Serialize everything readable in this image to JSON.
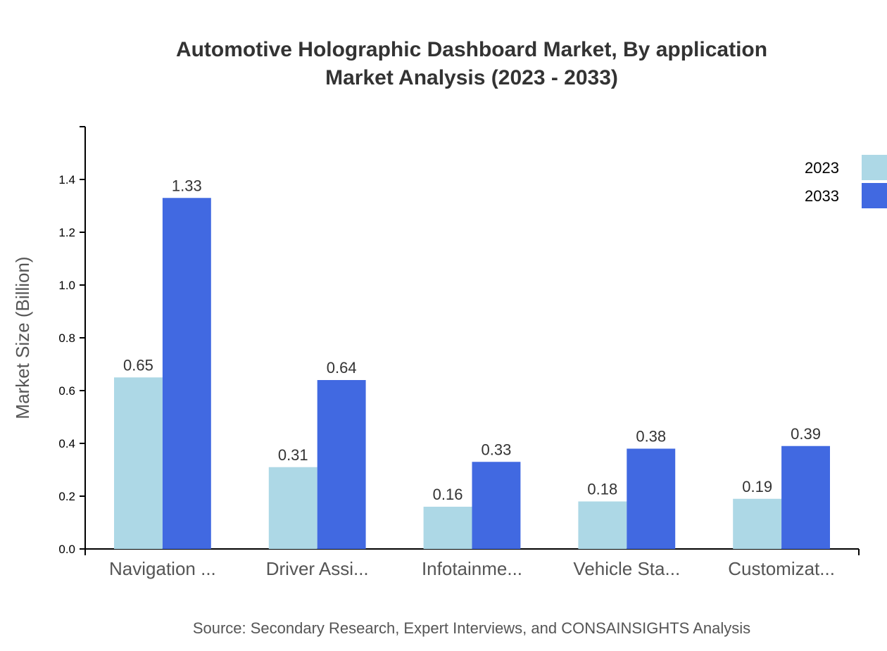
{
  "chart_data": {
    "type": "bar",
    "title": "Automotive Holographic Dashboard Market, By application",
    "subtitle": "Market Analysis (2023 - 2033)",
    "xlabel": "",
    "ylabel": "Market Size (Billion)",
    "ylim": [
      0,
      1.6
    ],
    "yticks": [
      "0.0",
      "0.2",
      "0.4",
      "0.6",
      "0.8",
      "1.0",
      "1.2",
      "1.4"
    ],
    "categories": [
      "Navigation ...",
      "Driver Assi...",
      "Infotainme...",
      "Vehicle Sta...",
      "Customizat..."
    ],
    "series": [
      {
        "name": "2023",
        "color": "#ADD8E6",
        "values": [
          0.65,
          0.31,
          0.16,
          0.18,
          0.19
        ],
        "labels": [
          "0.65",
          "0.31",
          "0.16",
          "0.18",
          "0.19"
        ]
      },
      {
        "name": "2033",
        "color": "#4169E1",
        "values": [
          1.33,
          0.64,
          0.33,
          0.38,
          0.39
        ],
        "labels": [
          "1.33",
          "0.64",
          "0.33",
          "0.38",
          "0.39"
        ]
      }
    ],
    "grid": false,
    "legend": "top-right",
    "source": "Source: Secondary Research, Expert Interviews, and CONSAINSIGHTS Analysis"
  }
}
